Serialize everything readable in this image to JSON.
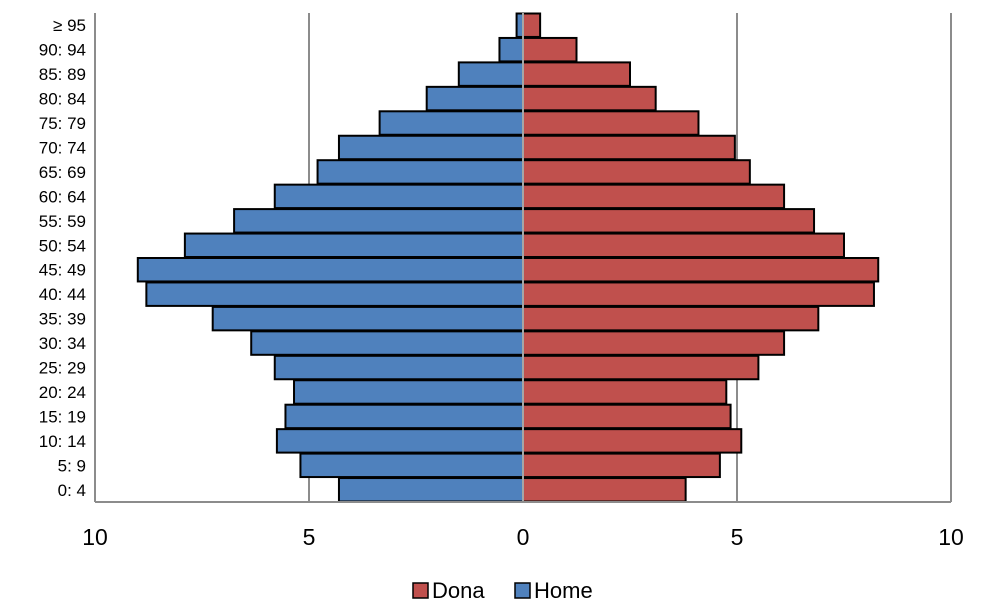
{
  "chart_data": {
    "type": "bar",
    "orientation": "horizontal-pyramid",
    "categories": [
      "0: 4",
      "5: 9",
      "10: 14",
      "15: 19",
      "20: 24",
      "25: 29",
      "30: 34",
      "35: 39",
      "40: 44",
      "45: 49",
      "50: 54",
      "55: 59",
      "60: 64",
      "65: 69",
      "70: 74",
      "75: 79",
      "80: 84",
      "85: 89",
      "90: 94",
      "≥ 95"
    ],
    "series": [
      {
        "name": "Dona",
        "side": "right",
        "color": "#c0504d",
        "values": [
          3.8,
          4.6,
          5.1,
          4.85,
          4.75,
          5.5,
          6.1,
          6.9,
          8.2,
          8.3,
          7.5,
          6.8,
          6.1,
          5.3,
          4.95,
          4.1,
          3.1,
          2.5,
          1.25,
          0.4
        ]
      },
      {
        "name": "Home",
        "side": "left",
        "color": "#4f81bd",
        "values": [
          4.3,
          5.2,
          5.75,
          5.55,
          5.35,
          5.8,
          6.35,
          7.25,
          8.8,
          9.0,
          7.9,
          6.75,
          5.8,
          4.8,
          4.3,
          3.35,
          2.25,
          1.5,
          0.55,
          0.15
        ]
      }
    ],
    "xlim": [
      -10,
      10
    ],
    "x_tick_values": [
      -10,
      -5,
      0,
      5,
      10
    ],
    "x_tick_labels": [
      "10",
      "5",
      "0",
      "5",
      "10"
    ],
    "grid": "vertical",
    "legend_position": "bottom-center",
    "legend": [
      {
        "label": "Dona",
        "color": "#c0504d"
      },
      {
        "label": "Home",
        "color": "#4f81bd"
      }
    ],
    "title": "",
    "xlabel": "",
    "ylabel": ""
  }
}
